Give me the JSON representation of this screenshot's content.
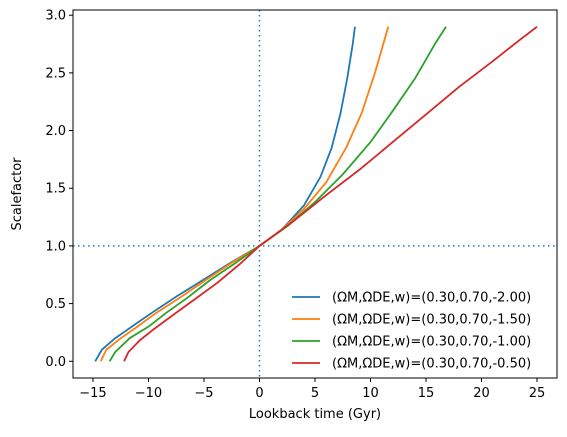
{
  "chart_data": {
    "type": "line",
    "title": "",
    "xlabel": "Lookback time (Gyr)",
    "ylabel": "Scalefactor",
    "xlim": [
      -16.8,
      26.8
    ],
    "ylim": [
      -0.145,
      3.045
    ],
    "x_ticks": [
      -15,
      -10,
      -5,
      0,
      5,
      10,
      15,
      20,
      25
    ],
    "x_tick_labels": [
      "−15",
      "−10",
      "−5",
      "0",
      "5",
      "10",
      "15",
      "20",
      "25"
    ],
    "y_ticks": [
      0.0,
      0.5,
      1.0,
      1.5,
      2.0,
      2.5,
      3.0
    ],
    "y_tick_labels": [
      "0.0",
      "0.5",
      "1.0",
      "1.5",
      "2.0",
      "2.5",
      "3.0"
    ],
    "grid": false,
    "legend_position": "lower-right",
    "reference_lines": [
      {
        "orientation": "vertical",
        "value": 0,
        "style": "dotted",
        "color": "#1f77b4"
      },
      {
        "orientation": "horizontal",
        "value": 1,
        "style": "dotted",
        "color": "#1f77b4"
      }
    ],
    "series": [
      {
        "name": "(ΩM,ΩDE,w)=(0.30,0.70,-2.00)",
        "color": "#1f77b4",
        "points": [
          [
            -14.8,
            0.0
          ],
          [
            -14.2,
            0.1
          ],
          [
            -13.0,
            0.2
          ],
          [
            -11.5,
            0.3
          ],
          [
            -9.7,
            0.42
          ],
          [
            -7.5,
            0.56
          ],
          [
            -5.0,
            0.71
          ],
          [
            -2.5,
            0.86
          ],
          [
            0.0,
            1.0
          ],
          [
            2.0,
            1.14
          ],
          [
            4.0,
            1.35
          ],
          [
            5.5,
            1.6
          ],
          [
            6.5,
            1.85
          ],
          [
            7.3,
            2.15
          ],
          [
            7.9,
            2.45
          ],
          [
            8.4,
            2.75
          ],
          [
            8.6,
            2.9
          ]
        ]
      },
      {
        "name": "(ΩM,ΩDE,w)=(0.30,0.70,-1.50)",
        "color": "#ff7f0e",
        "points": [
          [
            -14.3,
            0.0
          ],
          [
            -13.8,
            0.1
          ],
          [
            -12.5,
            0.2
          ],
          [
            -11.0,
            0.3
          ],
          [
            -9.3,
            0.42
          ],
          [
            -7.2,
            0.55
          ],
          [
            -4.9,
            0.7
          ],
          [
            -2.4,
            0.86
          ],
          [
            0.0,
            1.0
          ],
          [
            2.0,
            1.14
          ],
          [
            4.0,
            1.32
          ],
          [
            6.0,
            1.55
          ],
          [
            7.8,
            1.85
          ],
          [
            9.2,
            2.15
          ],
          [
            10.4,
            2.5
          ],
          [
            11.3,
            2.8
          ],
          [
            11.6,
            2.9
          ]
        ]
      },
      {
        "name": "(ΩM,ΩDE,w)=(0.30,0.70,-1.00)",
        "color": "#2ca02c",
        "points": [
          [
            -13.5,
            0.0
          ],
          [
            -13.0,
            0.08
          ],
          [
            -11.7,
            0.2
          ],
          [
            -10.0,
            0.3
          ],
          [
            -8.4,
            0.42
          ],
          [
            -6.5,
            0.55
          ],
          [
            -4.5,
            0.7
          ],
          [
            -2.2,
            0.85
          ],
          [
            0.0,
            1.0
          ],
          [
            2.5,
            1.17
          ],
          [
            5.0,
            1.38
          ],
          [
            7.5,
            1.62
          ],
          [
            10.0,
            1.9
          ],
          [
            12.0,
            2.17
          ],
          [
            14.0,
            2.45
          ],
          [
            15.8,
            2.75
          ],
          [
            16.8,
            2.9
          ]
        ]
      },
      {
        "name": "(ΩM,ΩDE,w)=(0.30,0.70,-0.50)",
        "color": "#d62728",
        "points": [
          [
            -12.2,
            0.0
          ],
          [
            -11.8,
            0.08
          ],
          [
            -10.8,
            0.18
          ],
          [
            -9.5,
            0.28
          ],
          [
            -7.8,
            0.4
          ],
          [
            -5.8,
            0.54
          ],
          [
            -3.8,
            0.68
          ],
          [
            -1.8,
            0.84
          ],
          [
            0.0,
            1.0
          ],
          [
            3.0,
            1.21
          ],
          [
            6.0,
            1.44
          ],
          [
            9.0,
            1.66
          ],
          [
            12.0,
            1.9
          ],
          [
            15.0,
            2.14
          ],
          [
            18.0,
            2.38
          ],
          [
            21.0,
            2.6
          ],
          [
            23.5,
            2.79
          ],
          [
            25.0,
            2.9
          ]
        ]
      }
    ]
  }
}
